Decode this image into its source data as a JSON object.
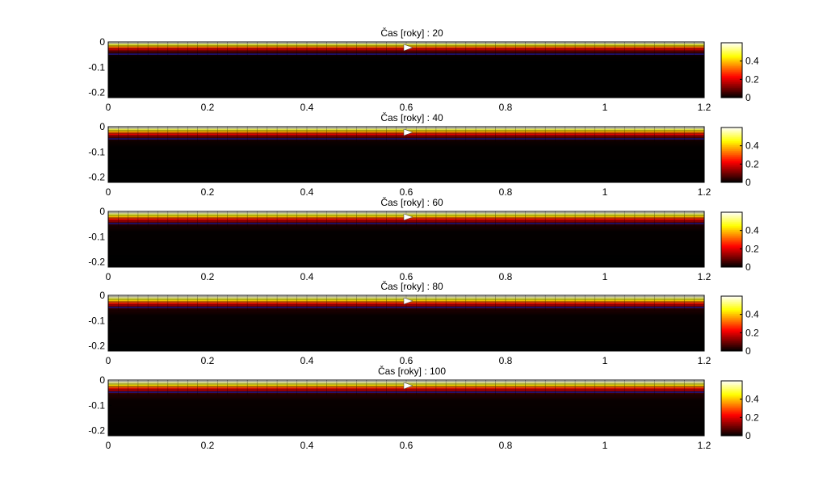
{
  "figure": {
    "background": "#ffffff"
  },
  "chart_data": [
    {
      "type": "heatmap",
      "title": "Čas [roky] : 20",
      "xlim": [
        0,
        1.2
      ],
      "ylim": [
        -0.22,
        0
      ],
      "x_ticks": [
        0,
        0.2,
        0.4,
        0.6,
        0.8,
        1,
        1.2
      ],
      "x_tick_labels": [
        "0",
        "0.2",
        "0.4",
        "0.6",
        "0.8",
        "1",
        "1.2"
      ],
      "y_ticks": [
        0,
        -0.1,
        -0.2
      ],
      "y_tick_labels": [
        "0",
        "-0.1",
        "-0.2"
      ],
      "colorbar": {
        "colormap": "hot",
        "range": [
          0,
          0.6
        ],
        "ticks": [
          0,
          0.2,
          0.4
        ],
        "tick_labels": [
          "0",
          "0.2",
          "0.4"
        ]
      },
      "mesh": {
        "columns": 60,
        "layers": 13,
        "depth_range": [
          0,
          -0.06
        ]
      },
      "depth_profile": {
        "depth": [
          0,
          -0.005,
          -0.01,
          -0.015,
          -0.02,
          -0.025,
          -0.03,
          -0.035,
          -0.04,
          -0.045,
          -0.05,
          -0.06,
          -0.08,
          -0.22
        ],
        "value": [
          0.6,
          0.58,
          0.5,
          0.42,
          0.33,
          0.25,
          0.18,
          0.12,
          0.07,
          0.04,
          0.02,
          0.005,
          0,
          0
        ]
      }
    },
    {
      "type": "heatmap",
      "title": "Čas [roky] : 40",
      "xlim": [
        0,
        1.2
      ],
      "ylim": [
        -0.22,
        0
      ],
      "x_ticks": [
        0,
        0.2,
        0.4,
        0.6,
        0.8,
        1,
        1.2
      ],
      "x_tick_labels": [
        "0",
        "0.2",
        "0.4",
        "0.6",
        "0.8",
        "1",
        "1.2"
      ],
      "y_ticks": [
        0,
        -0.1,
        -0.2
      ],
      "y_tick_labels": [
        "0",
        "-0.1",
        "-0.2"
      ],
      "colorbar": {
        "colormap": "hot",
        "range": [
          0,
          0.6
        ],
        "ticks": [
          0,
          0.2,
          0.4
        ],
        "tick_labels": [
          "0",
          "0.2",
          "0.4"
        ]
      },
      "mesh": {
        "columns": 60,
        "layers": 13,
        "depth_range": [
          0,
          -0.06
        ]
      },
      "depth_profile": {
        "depth": [
          0,
          -0.005,
          -0.01,
          -0.015,
          -0.02,
          -0.025,
          -0.03,
          -0.035,
          -0.04,
          -0.045,
          -0.05,
          -0.06,
          -0.08,
          -0.22
        ],
        "value": [
          0.6,
          0.58,
          0.52,
          0.45,
          0.37,
          0.29,
          0.22,
          0.16,
          0.1,
          0.06,
          0.035,
          0.012,
          0.002,
          0
        ]
      }
    },
    {
      "type": "heatmap",
      "title": "Čas [roky] : 60",
      "xlim": [
        0,
        1.2
      ],
      "ylim": [
        -0.22,
        0
      ],
      "x_ticks": [
        0,
        0.2,
        0.4,
        0.6,
        0.8,
        1,
        1.2
      ],
      "x_tick_labels": [
        "0",
        "0.2",
        "0.4",
        "0.6",
        "0.8",
        "1",
        "1.2"
      ],
      "y_ticks": [
        0,
        -0.1,
        -0.2
      ],
      "y_tick_labels": [
        "0",
        "-0.1",
        "-0.2"
      ],
      "colorbar": {
        "colormap": "hot",
        "range": [
          0,
          0.6
        ],
        "ticks": [
          0,
          0.2,
          0.4
        ],
        "tick_labels": [
          "0",
          "0.2",
          "0.4"
        ]
      },
      "mesh": {
        "columns": 60,
        "layers": 13,
        "depth_range": [
          0,
          -0.06
        ]
      },
      "depth_profile": {
        "depth": [
          0,
          -0.005,
          -0.01,
          -0.015,
          -0.02,
          -0.025,
          -0.03,
          -0.035,
          -0.04,
          -0.045,
          -0.05,
          -0.06,
          -0.08,
          -0.22
        ],
        "value": [
          0.6,
          0.58,
          0.53,
          0.47,
          0.4,
          0.32,
          0.25,
          0.19,
          0.13,
          0.08,
          0.05,
          0.02,
          0.004,
          0
        ]
      }
    },
    {
      "type": "heatmap",
      "title": "Čas [roky] : 80",
      "xlim": [
        0,
        1.2
      ],
      "ylim": [
        -0.22,
        0
      ],
      "x_ticks": [
        0,
        0.2,
        0.4,
        0.6,
        0.8,
        1,
        1.2
      ],
      "x_tick_labels": [
        "0",
        "0.2",
        "0.4",
        "0.6",
        "0.8",
        "1",
        "1.2"
      ],
      "y_ticks": [
        0,
        -0.1,
        -0.2
      ],
      "y_tick_labels": [
        "0",
        "-0.1",
        "-0.2"
      ],
      "colorbar": {
        "colormap": "hot",
        "range": [
          0,
          0.6
        ],
        "ticks": [
          0,
          0.2,
          0.4
        ],
        "tick_labels": [
          "0",
          "0.2",
          "0.4"
        ]
      },
      "mesh": {
        "columns": 60,
        "layers": 13,
        "depth_range": [
          0,
          -0.06
        ]
      },
      "depth_profile": {
        "depth": [
          0,
          -0.005,
          -0.01,
          -0.015,
          -0.02,
          -0.025,
          -0.03,
          -0.035,
          -0.04,
          -0.045,
          -0.05,
          -0.06,
          -0.08,
          -0.22
        ],
        "value": [
          0.6,
          0.58,
          0.54,
          0.48,
          0.42,
          0.34,
          0.27,
          0.21,
          0.15,
          0.1,
          0.06,
          0.025,
          0.006,
          0
        ]
      }
    },
    {
      "type": "heatmap",
      "title": "Čas [roky] : 100",
      "xlim": [
        0,
        1.2
      ],
      "ylim": [
        -0.22,
        0
      ],
      "x_ticks": [
        0,
        0.2,
        0.4,
        0.6,
        0.8,
        1,
        1.2
      ],
      "x_tick_labels": [
        "0",
        "0.2",
        "0.4",
        "0.6",
        "0.8",
        "1",
        "1.2"
      ],
      "y_ticks": [
        0,
        -0.1,
        -0.2
      ],
      "y_tick_labels": [
        "0",
        "-0.1",
        "-0.2"
      ],
      "colorbar": {
        "colormap": "hot",
        "range": [
          0,
          0.6
        ],
        "ticks": [
          0,
          0.2,
          0.4
        ],
        "tick_labels": [
          "0",
          "0.2",
          "0.4"
        ]
      },
      "mesh": {
        "columns": 60,
        "layers": 13,
        "depth_range": [
          0,
          -0.06
        ]
      },
      "depth_profile": {
        "depth": [
          0,
          -0.005,
          -0.01,
          -0.015,
          -0.02,
          -0.025,
          -0.03,
          -0.035,
          -0.04,
          -0.045,
          -0.05,
          -0.06,
          -0.08,
          -0.22
        ],
        "value": [
          0.6,
          0.59,
          0.55,
          0.5,
          0.43,
          0.36,
          0.29,
          0.23,
          0.17,
          0.11,
          0.07,
          0.03,
          0.008,
          0
        ]
      }
    }
  ]
}
